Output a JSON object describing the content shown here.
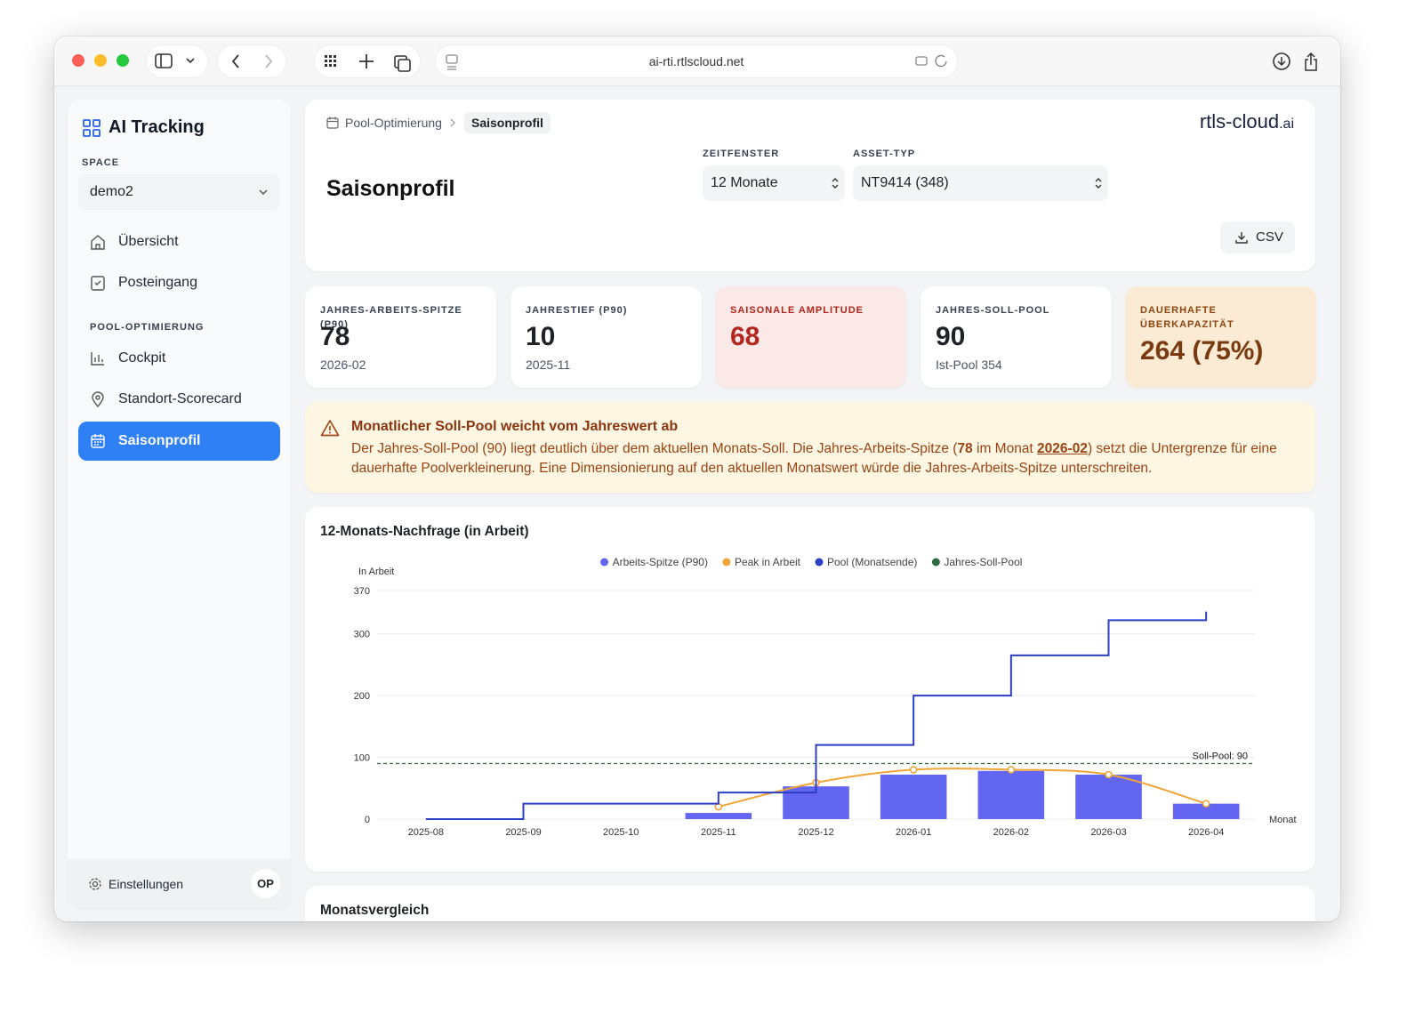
{
  "browser": {
    "url": "ai-rti.rtlscloud.net"
  },
  "sidebar": {
    "title": "AI Tracking",
    "space_label": "SPACE",
    "space_value": "demo2",
    "nav": [
      "Übersicht",
      "Posteingang"
    ],
    "section": "POOL-OPTIMIERUNG",
    "nav2": [
      "Cockpit",
      "Standort-Scorecard",
      "Saisonprofil"
    ],
    "settings": "Einstellungen",
    "avatar": "OP"
  },
  "header": {
    "breadcrumb": [
      "Pool-Optimierung",
      "Saisonprofil"
    ],
    "logo": "rtls-cloud",
    "logo_suffix": ".ai",
    "title": "Saisonprofil",
    "filters": [
      {
        "label": "ZEITFENSTER",
        "value": "12 Monate"
      },
      {
        "label": "ASSET-TYP",
        "value": "NT9414 (348)"
      }
    ],
    "csv": "CSV"
  },
  "kpis": [
    {
      "label": "JAHRES-ARBEITS-SPITZE (P90)",
      "value": "78",
      "sub": "2026-02"
    },
    {
      "label": "JAHRESTIEF (P90)",
      "value": "10",
      "sub": "2025-11"
    },
    {
      "label": "SAISONALE AMPLITUDE",
      "value": "68"
    },
    {
      "label": "JAHRES-SOLL-POOL",
      "value": "90",
      "sub": "Ist-Pool 354"
    },
    {
      "label": "DAUERHAFTE ÜBERKAPAZITÄT",
      "value": "264 (75%)"
    }
  ],
  "alert": {
    "title": "Monatlicher Soll-Pool weicht vom Jahreswert ab",
    "text": [
      "Der Jahres-Soll-Pool (90) liegt deutlich über dem aktuellen Monats-Soll. Die Jahres-Arbeits-Spitze (",
      "78",
      " im Monat ",
      "2026-02",
      ") setzt die Untergrenze für eine dauerhafte Poolverkleinerung. Eine Dimensionierung auf den aktuellen Monatswert würde die Jahres-Arbeits-Spitze unterschreiten."
    ]
  },
  "chart_data": {
    "type": "combo",
    "title": "12-Monats-Nachfrage (in Arbeit)",
    "y_label": "In Arbeit",
    "x_label": "Monat",
    "categories": [
      "2025-08",
      "2025-09",
      "2025-10",
      "2025-11",
      "2025-12",
      "2026-01",
      "2026-02",
      "2026-03",
      "2026-04"
    ],
    "series": [
      {
        "name": "Arbeits-Spitze (P90)",
        "type": "bar",
        "color": "#6366f1",
        "values": [
          null,
          null,
          null,
          10,
          53,
          72,
          78,
          72,
          25
        ]
      },
      {
        "name": "Peak in Arbeit",
        "type": "line",
        "color": "#f0a436",
        "values": [
          null,
          null,
          null,
          20,
          59,
          80,
          80,
          72,
          25
        ]
      },
      {
        "name": "Pool (Monatsende)",
        "type": "step",
        "color": "#2b3fc6",
        "values": [
          0,
          25,
          25,
          43,
          120,
          200,
          265,
          322,
          336
        ]
      },
      {
        "name": "Jahres-Soll-Pool",
        "type": "hline",
        "color": "#2f6b3c",
        "value": 90,
        "label": "Soll-Pool: 90"
      }
    ],
    "ylim": [
      0,
      370
    ],
    "yticks": [
      0,
      100,
      200,
      300,
      370
    ],
    "grid": true
  },
  "section2": {
    "title": "Monatsvergleich"
  }
}
